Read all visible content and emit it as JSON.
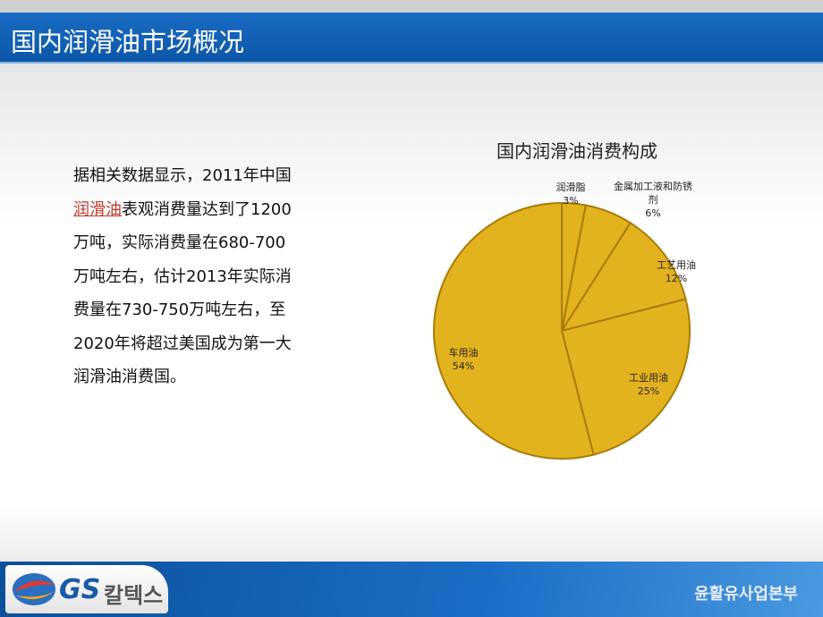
{
  "slide_title": "国内润滑油市场概况",
  "body": {
    "before": "据相关数据显示，2011年中国",
    "link": "润滑油",
    "after": "表观消费量达到了1200万吨，实际消费量在680-700万吨左右，估计2013年实际消费量在730-750万吨左右，至2020年将超过美国成为第一大润滑油消费国。"
  },
  "footer": {
    "logo_mark": "GS",
    "logo_text": "칼텍스",
    "division": "윤활유사업본부"
  },
  "chart_data": {
    "type": "pie",
    "title": "国内润滑油消费构成",
    "categories": [
      "润滑脂",
      "金属加工液和防锈剂",
      "工艺用油",
      "工业用油",
      "车用油"
    ],
    "values": [
      3,
      6,
      12,
      25,
      54
    ],
    "value_labels": [
      "3%",
      "6%",
      "12%",
      "25%",
      "54%"
    ],
    "color": "#e3b21f",
    "edge_color": "#a87c06"
  }
}
